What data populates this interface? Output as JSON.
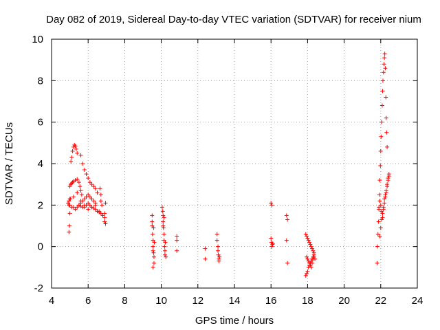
{
  "chart_data": {
    "type": "scatter",
    "title": "Day 082 of 2019, Sidereal Day-to-day VTEC variation (SDTVAR) for receiver nium",
    "xlabel": "GPS time / hours",
    "ylabel": "SDTVAR / TECUs",
    "xlim": [
      4,
      24
    ],
    "ylim": [
      -2,
      10
    ],
    "xticks": [
      "4",
      "6",
      "8",
      "10",
      "12",
      "14",
      "16",
      "18",
      "20",
      "22",
      "24"
    ],
    "yticks": [
      "-2",
      "0",
      "2",
      "4",
      "6",
      "8",
      "10"
    ],
    "grid": true,
    "marker": "+",
    "color": "#ff0000",
    "series": [
      {
        "name": "SDTVAR",
        "x": [
          4.95,
          4.98,
          5.0,
          5.03,
          5.06,
          5.1,
          5.15,
          5.2,
          5.25,
          5.3,
          5.35,
          5.4,
          4.95,
          5.0,
          5.05,
          5.1,
          5.15,
          5.2,
          5.3,
          5.4,
          5.5,
          5.55,
          5.6,
          5.65,
          5.6,
          5.7,
          5.8,
          5.9,
          6.0,
          6.1,
          6.2,
          6.3,
          6.4,
          6.5,
          4.9,
          4.95,
          5.0,
          5.1,
          5.2,
          5.3,
          5.4,
          5.5,
          5.6,
          5.7,
          5.8,
          5.9,
          6.0,
          6.1,
          6.2,
          6.3,
          6.4,
          5.5,
          5.6,
          5.7,
          5.8,
          5.9,
          6.0,
          6.1,
          6.2,
          6.3,
          6.4,
          6.5,
          6.6,
          6.7,
          6.8,
          6.9,
          5.0,
          5.2,
          5.4,
          5.6,
          5.8,
          6.0,
          6.2,
          6.4,
          6.6,
          6.65,
          6.7,
          6.7,
          6.75,
          6.9,
          6.9,
          6.9,
          6.95,
          6.95,
          9.5,
          9.5,
          9.52,
          9.55,
          9.55,
          9.58,
          9.6,
          9.6,
          9.55,
          9.58,
          9.62,
          9.5,
          9.55,
          10.05,
          10.08,
          10.1,
          10.1,
          10.12,
          10.15,
          10.15,
          10.18,
          10.2,
          10.2,
          10.22,
          10.25,
          10.1,
          10.15,
          10.85,
          10.85,
          10.85,
          12.4,
          12.4,
          13.05,
          13.05,
          13.1,
          13.1,
          13.12,
          13.15,
          13.15,
          13.18,
          16.0,
          16.05,
          16.0,
          16.02,
          16.05,
          16.08,
          16.1,
          16.85,
          16.9,
          16.85,
          16.9,
          17.9,
          17.95,
          18.0,
          18.05,
          18.1,
          18.15,
          18.2,
          18.25,
          18.3,
          18.35,
          17.9,
          17.95,
          18.0,
          18.05,
          18.1,
          18.15,
          18.2,
          18.25,
          18.3,
          18.35,
          18.4,
          17.95,
          18.0,
          18.05,
          18.1,
          18.15,
          18.2,
          18.25,
          18.3,
          18.35,
          21.8,
          21.82,
          21.85,
          21.88,
          21.9,
          21.92,
          21.95,
          21.98,
          22.0,
          22.02,
          22.05,
          22.08,
          22.1,
          22.12,
          22.15,
          22.18,
          22.2,
          22.22,
          22.25,
          22.28,
          22.3,
          22.32,
          22.35,
          21.95,
          22.0,
          22.05,
          22.1,
          22.15,
          22.2,
          22.25,
          22.3,
          22.35,
          22.4,
          22.45,
          21.9,
          21.95,
          22.0,
          22.05,
          22.1,
          22.15,
          22.2,
          22.25,
          22.3,
          22.35,
          22.4,
          22.45
        ],
        "y": [
          0.7,
          1.0,
          1.6,
          2.3,
          4.1,
          4.3,
          4.6,
          4.8,
          4.9,
          4.85,
          4.7,
          4.5,
          2.2,
          2.9,
          3.0,
          3.05,
          3.1,
          3.15,
          3.2,
          3.25,
          3.1,
          2.9,
          2.7,
          2.5,
          4.4,
          4.0,
          3.7,
          3.5,
          3.3,
          3.1,
          3.0,
          2.9,
          2.8,
          2.6,
          2.1,
          2.0,
          2.0,
          1.9,
          1.9,
          1.8,
          1.9,
          2.0,
          2.1,
          2.2,
          2.3,
          2.4,
          2.5,
          2.4,
          2.3,
          2.2,
          2.1,
          2.0,
          1.95,
          1.9,
          1.9,
          2.0,
          2.1,
          2.0,
          1.9,
          1.85,
          1.8,
          1.7,
          1.65,
          1.6,
          1.5,
          1.2,
          2.3,
          2.4,
          2.6,
          2.2,
          2.0,
          1.8,
          1.9,
          2.0,
          1.7,
          2.8,
          2.5,
          2.2,
          2.0,
          1.6,
          1.4,
          1.2,
          1.1,
          2.1,
          1.5,
          1.0,
          0.6,
          0.3,
          0.0,
          -0.3,
          -0.5,
          -0.8,
          -1.0,
          0.9,
          0.2,
          1.2,
          -0.2,
          1.9,
          1.7,
          1.5,
          1.2,
          0.9,
          0.6,
          0.3,
          0.0,
          -0.2,
          -0.4,
          0.2,
          -0.5,
          1.0,
          1.4,
          0.5,
          0.3,
          -0.2,
          -0.1,
          -0.6,
          0.6,
          0.3,
          0.0,
          -0.2,
          -0.4,
          -0.6,
          -0.7,
          -0.5,
          2.1,
          2.0,
          0.4,
          0.2,
          0.0,
          0.1,
          0.15,
          1.5,
          1.3,
          0.3,
          -0.8,
          0.6,
          0.5,
          0.4,
          0.3,
          0.2,
          0.1,
          0.0,
          -0.1,
          -0.2,
          -0.3,
          -1.4,
          -1.3,
          -1.2,
          -1.0,
          -0.9,
          -0.8,
          -0.7,
          -0.6,
          -0.5,
          -0.4,
          -0.6,
          -0.5,
          -0.6,
          -0.7,
          -0.8,
          -0.9,
          -1.0,
          -0.8,
          -0.6,
          -0.5,
          -0.8,
          0.0,
          0.6,
          1.2,
          1.8,
          2.5,
          3.2,
          3.9,
          4.6,
          5.3,
          6.0,
          6.8,
          7.5,
          8.0,
          8.4,
          8.8,
          9.1,
          9.3,
          8.6,
          7.2,
          6.2,
          5.5,
          4.8,
          0.5,
          0.9,
          1.3,
          1.6,
          1.9,
          2.1,
          2.4,
          2.7,
          3.0,
          3.3,
          3.5,
          1.9,
          2.2,
          2.0,
          1.7,
          1.4,
          1.8,
          2.3,
          2.5,
          2.6,
          2.9,
          3.2,
          3.4
        ]
      }
    ]
  }
}
